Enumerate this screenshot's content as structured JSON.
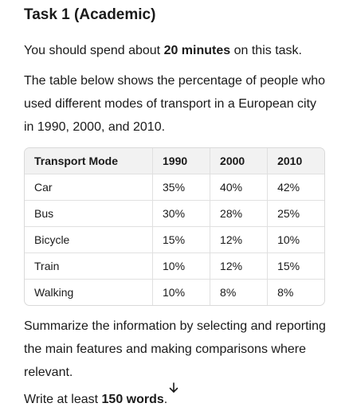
{
  "task": {
    "title": "Task 1 (Academic)",
    "time_pre": "You should spend about ",
    "time_bold": "20 minutes",
    "time_post": " on this task.",
    "description": "The table below shows the percentage of people who used different modes of transport in a European city in 1990, 2000, and 2010.",
    "summary": "Summarize the information by selecting and reporting the main features and making comparisons where relevant.",
    "words_pre": "Write at least ",
    "words_bold": "150 words",
    "words_post": "."
  },
  "table": {
    "headers": [
      "Transport Mode",
      "1990",
      "2000",
      "2010"
    ],
    "rows": [
      [
        "Car",
        "35%",
        "40%",
        "42%"
      ],
      [
        "Bus",
        "30%",
        "28%",
        "25%"
      ],
      [
        "Bicycle",
        "15%",
        "12%",
        "10%"
      ],
      [
        "Train",
        "10%",
        "12%",
        "15%"
      ],
      [
        "Walking",
        "10%",
        "8%",
        "8%"
      ]
    ]
  },
  "scroll_button": {
    "icon": "arrow-down-icon"
  }
}
